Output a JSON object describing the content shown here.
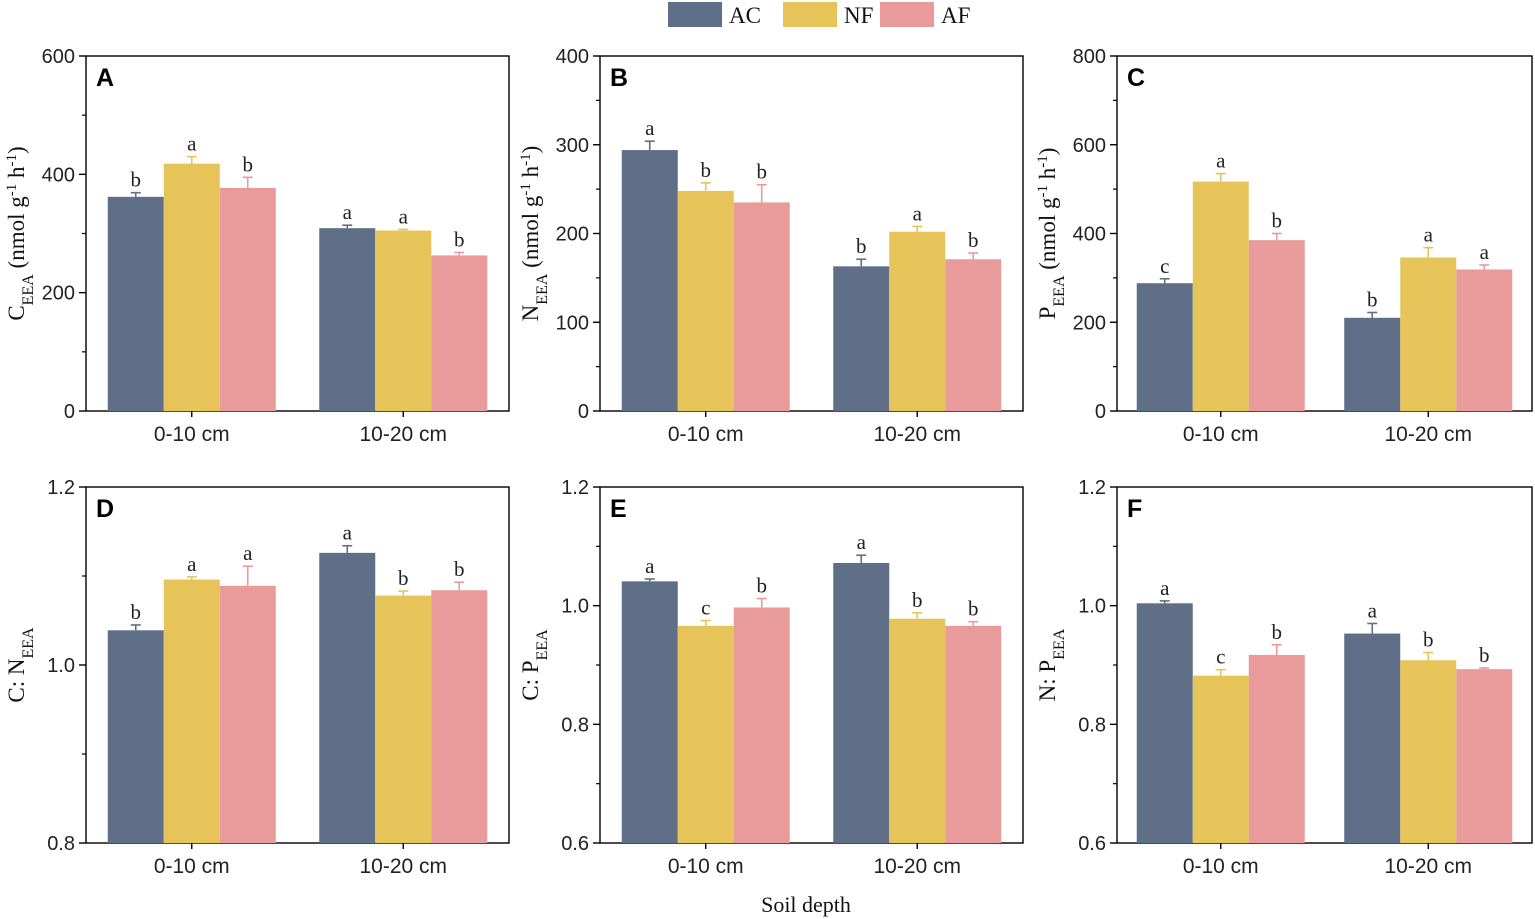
{
  "legend": [
    {
      "name": "AC",
      "color": "#5f6f88"
    },
    {
      "name": "NF",
      "color": "#e6c45a"
    },
    {
      "name": "AF",
      "color": "#e99a9a"
    }
  ],
  "xlabel": "Soil depth",
  "chart_data": [
    {
      "type": "bar",
      "panel": "A",
      "ylabel_main": "C",
      "ylabel_sub": "EEA",
      "ylabel_unit_open": " (nmol g",
      "ylabel_sup1": "-1",
      "ylabel_unit_mid": " h",
      "ylabel_sup2": "-1",
      "ylabel_unit_close": ")",
      "categories": [
        "0-10 cm",
        "10-20 cm"
      ],
      "ylim": [
        0,
        600
      ],
      "yticks": [
        0,
        200,
        400,
        600
      ],
      "ytick_labels": [
        "0",
        "200",
        "400",
        "600"
      ],
      "series": [
        {
          "name": "AC",
          "values": [
            362,
            309
          ],
          "errors": [
            7,
            5
          ],
          "letters": [
            "b",
            "a"
          ]
        },
        {
          "name": "NF",
          "values": [
            418,
            305
          ],
          "errors": [
            12,
            2
          ],
          "letters": [
            "a",
            "a"
          ]
        },
        {
          "name": "AF",
          "values": [
            377,
            263
          ],
          "errors": [
            18,
            5
          ],
          "letters": [
            "b",
            "b"
          ]
        }
      ]
    },
    {
      "type": "bar",
      "panel": "B",
      "ylabel_main": "N",
      "ylabel_sub": "EEA",
      "ylabel_unit_open": " (nmol g",
      "ylabel_sup1": "-1",
      "ylabel_unit_mid": " h",
      "ylabel_sup2": "-1",
      "ylabel_unit_close": ")",
      "categories": [
        "0-10 cm",
        "10-20 cm"
      ],
      "ylim": [
        0,
        400
      ],
      "yticks": [
        0,
        100,
        200,
        300,
        400
      ],
      "ytick_labels": [
        "0",
        "100",
        "200",
        "300",
        "400"
      ],
      "series": [
        {
          "name": "AC",
          "values": [
            294,
            163
          ],
          "errors": [
            10,
            8
          ],
          "letters": [
            "a",
            "b"
          ]
        },
        {
          "name": "NF",
          "values": [
            248,
            202
          ],
          "errors": [
            9,
            6
          ],
          "letters": [
            "b",
            "a"
          ]
        },
        {
          "name": "AF",
          "values": [
            235,
            171
          ],
          "errors": [
            20,
            7
          ],
          "letters": [
            "b",
            "b"
          ]
        }
      ]
    },
    {
      "type": "bar",
      "panel": "C",
      "ylabel_main": "P",
      "ylabel_sub": "EEA",
      "ylabel_unit_open": " (nmol g",
      "ylabel_sup1": "-1",
      "ylabel_unit_mid": " h",
      "ylabel_sup2": "-1",
      "ylabel_unit_close": ")",
      "categories": [
        "0-10 cm",
        "10-20 cm"
      ],
      "ylim": [
        0,
        800
      ],
      "yticks": [
        0,
        200,
        400,
        600,
        800
      ],
      "ytick_labels": [
        "0",
        "200",
        "400",
        "600",
        "800"
      ],
      "series": [
        {
          "name": "AC",
          "values": [
            288,
            210
          ],
          "errors": [
            10,
            12
          ],
          "letters": [
            "c",
            "b"
          ]
        },
        {
          "name": "NF",
          "values": [
            517,
            346
          ],
          "errors": [
            18,
            22
          ],
          "letters": [
            "a",
            "a"
          ]
        },
        {
          "name": "AF",
          "values": [
            385,
            319
          ],
          "errors": [
            15,
            10
          ],
          "letters": [
            "b",
            "a"
          ]
        }
      ]
    },
    {
      "type": "bar",
      "panel": "D",
      "ylabel_main": "C: N",
      "ylabel_sub": "EEA",
      "ylabel_unit_open": "",
      "ylabel_sup1": "",
      "ylabel_unit_mid": "",
      "ylabel_sup2": "",
      "ylabel_unit_close": "",
      "categories": [
        "0-10 cm",
        "10-20 cm"
      ],
      "ylim": [
        0.8,
        1.2
      ],
      "yticks": [
        0.8,
        1.0,
        1.2
      ],
      "ytick_labels": [
        "0.8",
        "1.0",
        "1.2"
      ],
      "series": [
        {
          "name": "AC",
          "values": [
            1.039,
            1.126
          ],
          "errors": [
            0.006,
            0.008
          ],
          "letters": [
            "b",
            "a"
          ]
        },
        {
          "name": "NF",
          "values": [
            1.096,
            1.078
          ],
          "errors": [
            0.003,
            0.005
          ],
          "letters": [
            "a",
            "b"
          ]
        },
        {
          "name": "AF",
          "values": [
            1.089,
            1.084
          ],
          "errors": [
            0.022,
            0.009
          ],
          "letters": [
            "a",
            "b"
          ]
        }
      ]
    },
    {
      "type": "bar",
      "panel": "E",
      "ylabel_main": "C: P",
      "ylabel_sub": "EEA",
      "ylabel_unit_open": "",
      "ylabel_sup1": "",
      "ylabel_unit_mid": "",
      "ylabel_sup2": "",
      "ylabel_unit_close": "",
      "categories": [
        "0-10 cm",
        "10-20 cm"
      ],
      "ylim": [
        0.6,
        1.2
      ],
      "yticks": [
        0.6,
        0.8,
        1.0,
        1.2
      ],
      "ytick_labels": [
        "0.6",
        "0.8",
        "1.0",
        "1.2"
      ],
      "series": [
        {
          "name": "AC",
          "values": [
            1.041,
            1.072
          ],
          "errors": [
            0.004,
            0.013
          ],
          "letters": [
            "a",
            "a"
          ]
        },
        {
          "name": "NF",
          "values": [
            0.966,
            0.978
          ],
          "errors": [
            0.009,
            0.01
          ],
          "letters": [
            "c",
            "b"
          ]
        },
        {
          "name": "AF",
          "values": [
            0.997,
            0.966
          ],
          "errors": [
            0.015,
            0.007
          ],
          "letters": [
            "b",
            "b"
          ]
        }
      ]
    },
    {
      "type": "bar",
      "panel": "F",
      "ylabel_main": "N: P",
      "ylabel_sub": "EEA",
      "ylabel_unit_open": "",
      "ylabel_sup1": "",
      "ylabel_unit_mid": "",
      "ylabel_sup2": "",
      "ylabel_unit_close": "",
      "categories": [
        "0-10 cm",
        "10-20 cm"
      ],
      "ylim": [
        0.6,
        1.2
      ],
      "yticks": [
        0.6,
        0.8,
        1.0,
        1.2
      ],
      "ytick_labels": [
        "0.6",
        "0.8",
        "1.0",
        "1.2"
      ],
      "series": [
        {
          "name": "AC",
          "values": [
            1.004,
            0.953
          ],
          "errors": [
            0.004,
            0.017
          ],
          "letters": [
            "a",
            "a"
          ]
        },
        {
          "name": "NF",
          "values": [
            0.882,
            0.908
          ],
          "errors": [
            0.01,
            0.013
          ],
          "letters": [
            "c",
            "b"
          ]
        },
        {
          "name": "AF",
          "values": [
            0.917,
            0.893
          ],
          "errors": [
            0.017,
            0.002
          ],
          "letters": [
            "b",
            "b"
          ]
        }
      ]
    }
  ]
}
